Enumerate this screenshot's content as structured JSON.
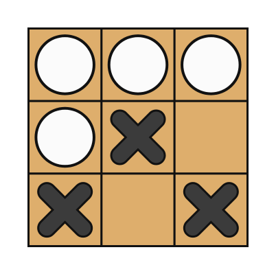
{
  "board": {
    "rows": 3,
    "cols": 3,
    "cells": [
      [
        "O",
        "O",
        "O"
      ],
      [
        "O",
        "X",
        ""
      ],
      [
        "X",
        "",
        "X"
      ]
    ]
  },
  "colors": {
    "board_fill": "#deae6c",
    "grid_line": "#111111",
    "o_fill": "#fbfbfb",
    "o_stroke": "#111111",
    "x_fill": "#3b3b3b",
    "x_stroke": "#111111"
  },
  "pieces": {
    "o_icon": "white-stone-icon",
    "x_icon": "black-cross-icon"
  }
}
